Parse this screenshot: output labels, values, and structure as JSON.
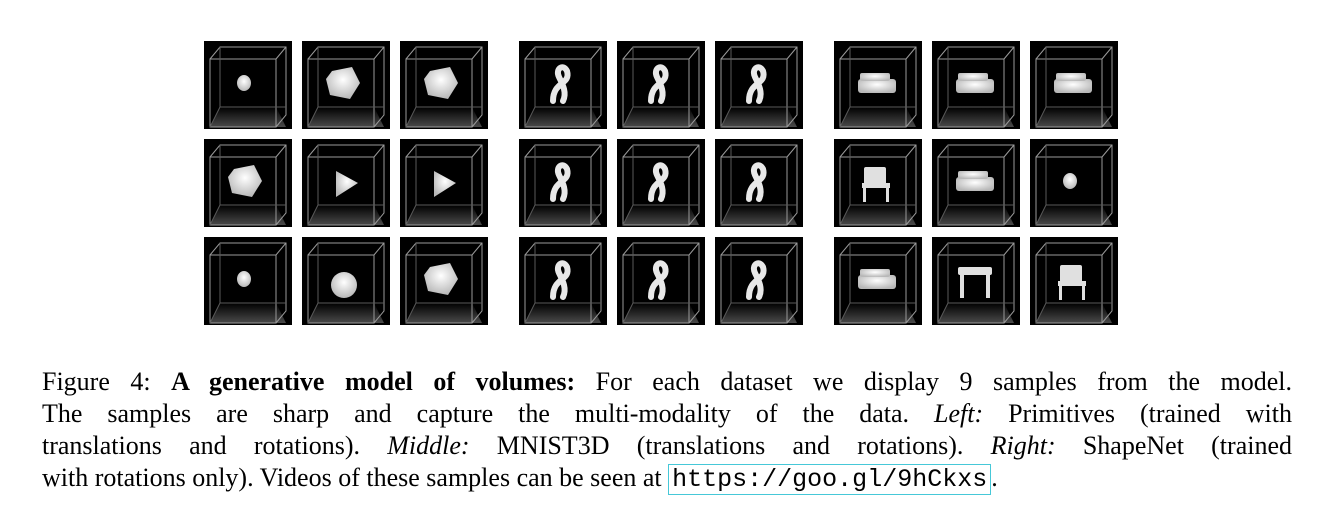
{
  "figure": {
    "panels": [
      {
        "id": "left",
        "dataset": "Primitives",
        "samples": [
          "blob",
          "cube",
          "cube",
          "cube",
          "triangle",
          "triangle",
          "blob",
          "sphere",
          "cube"
        ]
      },
      {
        "id": "middle",
        "dataset": "MNIST3D",
        "samples": [
          "digit",
          "digit",
          "digit",
          "digit",
          "digit",
          "digit",
          "digit",
          "digit",
          "digit"
        ]
      },
      {
        "id": "right",
        "dataset": "ShapeNet",
        "samples": [
          "sofa",
          "sofa",
          "sofa",
          "chair",
          "sofa",
          "blob",
          "sofa",
          "table",
          "chair"
        ]
      }
    ],
    "caption": {
      "lead": "Figure 4:",
      "bold": "A generative model of volumes:",
      "t1": "For each dataset we display 9 samples from the model.",
      "t2": "The samples are sharp and capture the multi-modality of the data.",
      "left_label": "Left:",
      "t3": "Primitives (trained with",
      "t4": "translations and rotations).",
      "middle_label": "Middle:",
      "t5": "MNIST3D (translations and rotations).",
      "right_label": "Right:",
      "t6": "ShapeNet (trained",
      "t7": "with rotations only). Videos of these samples can be seen at",
      "url": "https://goo.gl/9hCkxs",
      "end": "."
    }
  }
}
